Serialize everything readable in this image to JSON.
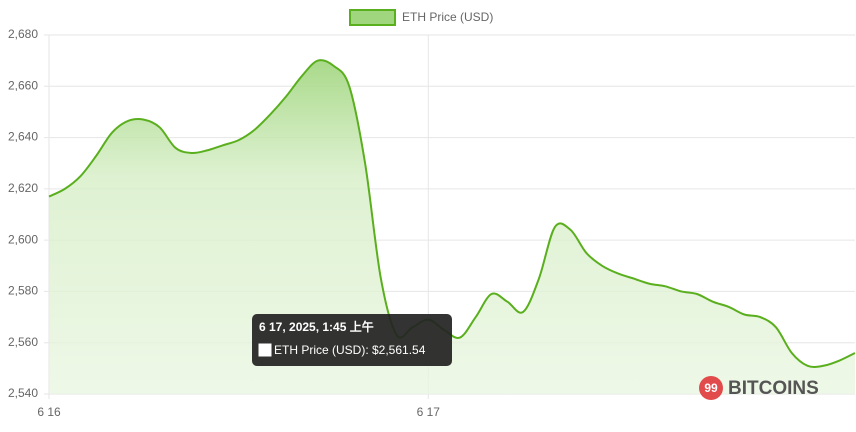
{
  "chart_data": {
    "type": "line",
    "series": [
      {
        "name": "ETH Price (USD)",
        "color": "#5aaf1e",
        "values": [
          2617,
          2620,
          2625,
          2633,
          2642,
          2646.5,
          2647,
          2644,
          2636,
          2634,
          2635,
          2637,
          2639,
          2643,
          2649,
          2656,
          2664,
          2670,
          2668,
          2660,
          2630,
          2585,
          2563,
          2566,
          2569,
          2565,
          2562,
          2570,
          2579,
          2576,
          2572,
          2585,
          2605,
          2604,
          2595,
          2590,
          2587,
          2585,
          2583,
          2582,
          2580,
          2579,
          2576,
          2574,
          2571,
          2570,
          2566,
          2556,
          2551,
          2551,
          2553,
          2556
        ]
      }
    ],
    "x": [
      "6 16",
      null,
      null,
      null,
      null,
      null,
      null,
      null,
      null,
      null,
      null,
      null,
      null,
      null,
      null,
      null,
      null,
      null,
      null,
      null,
      null,
      null,
      null,
      null,
      "6 17",
      null,
      null,
      null,
      null,
      null,
      null,
      null,
      null,
      null,
      null,
      null,
      null,
      null,
      null,
      null,
      null,
      null,
      null,
      null,
      null,
      null,
      null,
      null,
      null,
      null,
      null,
      null
    ],
    "ylim": [
      2540,
      2680
    ],
    "yticks": [
      {
        "value": 2540,
        "label": "2,540"
      },
      {
        "value": 2560,
        "label": "2,560"
      },
      {
        "value": 2580,
        "label": "2,580"
      },
      {
        "value": 2600,
        "label": "2,600"
      },
      {
        "value": 2620,
        "label": "2,620"
      },
      {
        "value": 2640,
        "label": "2,640"
      },
      {
        "value": 2660,
        "label": "2,660"
      },
      {
        "value": 2680,
        "label": "2,680"
      }
    ],
    "grid": true,
    "tooltip": {
      "title": "6 17, 2025, 1:45 上午",
      "body": "ETH Price (USD): $2,561.54"
    },
    "watermark": {
      "logo": "99",
      "text": "BITCOINS"
    }
  }
}
